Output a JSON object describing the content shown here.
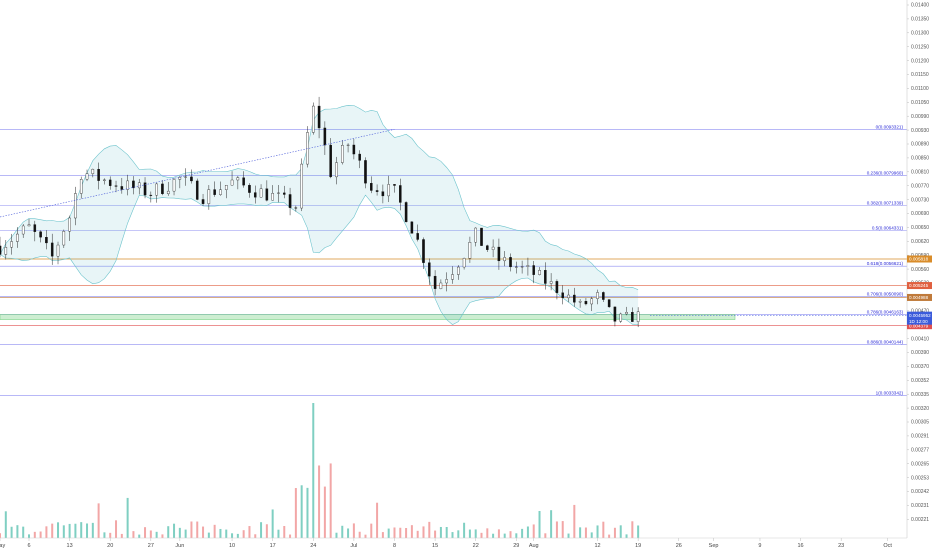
{
  "chart_data": {
    "type": "candlestick",
    "yticks": [
      0.014,
      0.0135,
      0.013,
      0.0125,
      0.012,
      0.0115,
      0.011,
      0.0105,
      0.0099,
      0.0093,
      0.0089,
      0.0085,
      0.0081,
      0.0077,
      0.0073,
      0.0069,
      0.0065,
      0.0062,
      0.0059,
      0.0056,
      0.0053,
      0.005,
      0.0047,
      0.0044,
      0.0041,
      0.0039,
      0.0037,
      0.00352,
      0.00335,
      0.0032,
      0.00305,
      0.00291,
      0.00277,
      0.00265,
      0.00253,
      0.00242,
      0.00231,
      0.00221
    ],
    "ytick_labels": [
      "0.01400",
      "0.01350",
      "0.01300",
      "0.01250",
      "0.01200",
      "0.01150",
      "0.01100",
      "0.01050",
      "0.00990",
      "0.00930",
      "0.00890",
      "0.00850",
      "0.00810",
      "0.00770",
      "0.00730",
      "0.00690",
      "0.00650",
      "0.00620",
      "0.00590",
      "0.00560",
      "0.00530",
      "0.00500",
      "0.00470",
      "0.00440",
      "0.00410",
      "0.00390",
      "0.00370",
      "0.00352",
      "0.00335",
      "0.00320",
      "0.00305",
      "0.00291",
      "0.00277",
      "0.00265",
      "0.00253",
      "0.00242",
      "0.00231",
      "0.00221"
    ],
    "x_labels": [
      "May",
      "6",
      "13",
      "20",
      "27",
      "Jun",
      "10",
      "17",
      "24",
      "Jul",
      "8",
      "15",
      "22",
      "29",
      "Aug",
      "12",
      "19",
      "26",
      "Sep",
      "9",
      "16",
      "23",
      "Oct"
    ],
    "x_label_dates": [
      "2019-05-01",
      "2019-05-06",
      "2019-05-13",
      "2019-05-20",
      "2019-05-27",
      "2019-06-01",
      "2019-06-10",
      "2019-06-17",
      "2019-06-24",
      "2019-07-01",
      "2019-07-08",
      "2019-07-15",
      "2019-07-22",
      "2019-07-29",
      "2019-08-01",
      "2019-08-12",
      "2019-08-19",
      "2019-08-26",
      "2019-09-01",
      "2019-09-09",
      "2019-09-16",
      "2019-09-23",
      "2019-10-01"
    ],
    "x_range": [
      "2019-05-01",
      "2019-10-04"
    ],
    "fib_levels": [
      {
        "label": "0(0.0093321)",
        "value": 0.0093321
      },
      {
        "label": "0.236(0.0079960)",
        "value": 0.007996
      },
      {
        "label": "0.382(0.0071339)",
        "value": 0.0071339
      },
      {
        "label": "0.5(0.0064331)",
        "value": 0.0064331
      },
      {
        "label": "0.618(0.0056621)",
        "value": 0.0056621
      },
      {
        "label": "0.706(0.0050090)",
        "value": 0.005009
      },
      {
        "label": "0.786(0.0046163)",
        "value": 0.0046163
      },
      {
        "label": "0.886(0.0040144)",
        "value": 0.0040144
      },
      {
        "label": "1(0.0033342)",
        "value": 0.0033342
      }
    ],
    "horizontal_lines": [
      {
        "label": "0.005818",
        "value": 0.005818,
        "color": "#d98c2a"
      },
      {
        "label": "0.005245",
        "value": 0.005245,
        "color": "#e06040"
      },
      {
        "label": "0.004988",
        "value": 0.004988,
        "color": "#c07a3a"
      },
      {
        "label": "0.004379",
        "value": 0.004379,
        "color": "#e05050"
      }
    ],
    "current_price": {
      "value": 0.0045952,
      "label": "0.0045952",
      "timer": "1D 12:00"
    },
    "support_zone": {
      "from": 0.00451,
      "to": 0.00462,
      "color": "#6fcf7a"
    },
    "price_path": [
      {
        "date": "2019-05-01",
        "value": 0.0061
      },
      {
        "date": "2019-05-06",
        "value": 0.0065
      },
      {
        "date": "2019-05-10",
        "value": 0.00585
      },
      {
        "date": "2019-05-13",
        "value": 0.0068
      },
      {
        "date": "2019-05-15",
        "value": 0.0081
      },
      {
        "date": "2019-05-20",
        "value": 0.0078
      },
      {
        "date": "2019-05-27",
        "value": 0.0075
      },
      {
        "date": "2019-06-01",
        "value": 0.0079
      },
      {
        "date": "2019-06-05",
        "value": 0.0074
      },
      {
        "date": "2019-06-10",
        "value": 0.0078
      },
      {
        "date": "2019-06-17",
        "value": 0.0074
      },
      {
        "date": "2019-06-21",
        "value": 0.0071
      },
      {
        "date": "2019-06-24",
        "value": 0.0102
      },
      {
        "date": "2019-06-27",
        "value": 0.0081
      },
      {
        "date": "2019-06-30",
        "value": 0.0089
      },
      {
        "date": "2019-07-04",
        "value": 0.0077
      },
      {
        "date": "2019-07-08",
        "value": 0.0075
      },
      {
        "date": "2019-07-12",
        "value": 0.0062
      },
      {
        "date": "2019-07-15",
        "value": 0.0052
      },
      {
        "date": "2019-07-18",
        "value": 0.0056
      },
      {
        "date": "2019-07-22",
        "value": 0.0063
      },
      {
        "date": "2019-07-26",
        "value": 0.0058
      },
      {
        "date": "2019-08-01",
        "value": 0.0055
      },
      {
        "date": "2019-08-06",
        "value": 0.0051
      },
      {
        "date": "2019-08-09",
        "value": 0.0048
      },
      {
        "date": "2019-08-12",
        "value": 0.005
      },
      {
        "date": "2019-08-15",
        "value": 0.0045
      },
      {
        "date": "2019-08-19",
        "value": 0.0045952
      }
    ],
    "trendline": {
      "from": {
        "date": "2019-05-01",
        "value": 0.0068
      },
      "to": {
        "date": "2019-07-08",
        "value": 0.0093321
      }
    },
    "volume_spike": {
      "date": "2019-06-24"
    },
    "grid": false
  }
}
